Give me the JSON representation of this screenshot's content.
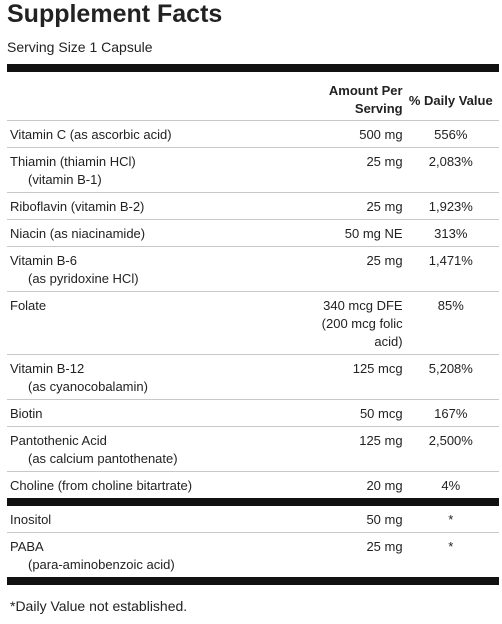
{
  "title": "Supplement Facts",
  "serving_size": "Serving Size 1 Capsule",
  "headers": {
    "amount_line1": "Amount Per",
    "amount_line2": "Serving",
    "daily_value": "% Daily Value"
  },
  "nutrients": [
    {
      "name": "Vitamin C (as ascorbic acid)",
      "sub": "",
      "amount": [
        "500 mg"
      ],
      "dv": "556%"
    },
    {
      "name": "Thiamin (thiamin HCl)",
      "sub": "(vitamin B-1)",
      "amount": [
        "25 mg"
      ],
      "dv": "2,083%"
    },
    {
      "name": "Riboflavin (vitamin B-2)",
      "sub": "",
      "amount": [
        "25 mg"
      ],
      "dv": "1,923%"
    },
    {
      "name": "Niacin (as niacinamide)",
      "sub": "",
      "amount": [
        "50 mg NE"
      ],
      "dv": "313%"
    },
    {
      "name": "Vitamin B-6",
      "sub": "(as pyridoxine HCl)",
      "amount": [
        "25 mg"
      ],
      "dv": "1,471%"
    },
    {
      "name": "Folate",
      "sub": "",
      "amount": [
        "340 mcg DFE",
        "(200 mcg folic",
        "acid)"
      ],
      "dv": "85%"
    },
    {
      "name": "Vitamin B-12",
      "sub": "(as cyanocobalamin)",
      "amount": [
        "125 mcg"
      ],
      "dv": "5,208%"
    },
    {
      "name": "Biotin",
      "sub": "",
      "amount": [
        "50 mcg"
      ],
      "dv": "167%"
    },
    {
      "name": "Pantothenic Acid",
      "sub": "(as calcium pantothenate)",
      "amount": [
        "125 mg"
      ],
      "dv": "2,500%"
    },
    {
      "name": "Choline (from choline bitartrate)",
      "sub": "",
      "amount": [
        "20 mg"
      ],
      "dv": "4%"
    }
  ],
  "other_ingredients": [
    {
      "name": "Inositol",
      "sub": "",
      "amount": [
        "50 mg"
      ],
      "dv": "*"
    },
    {
      "name": "PABA",
      "sub": "(para-aminobenzoic acid)",
      "amount": [
        "25 mg"
      ],
      "dv": "*"
    }
  ],
  "footnote": "*Daily Value not established."
}
